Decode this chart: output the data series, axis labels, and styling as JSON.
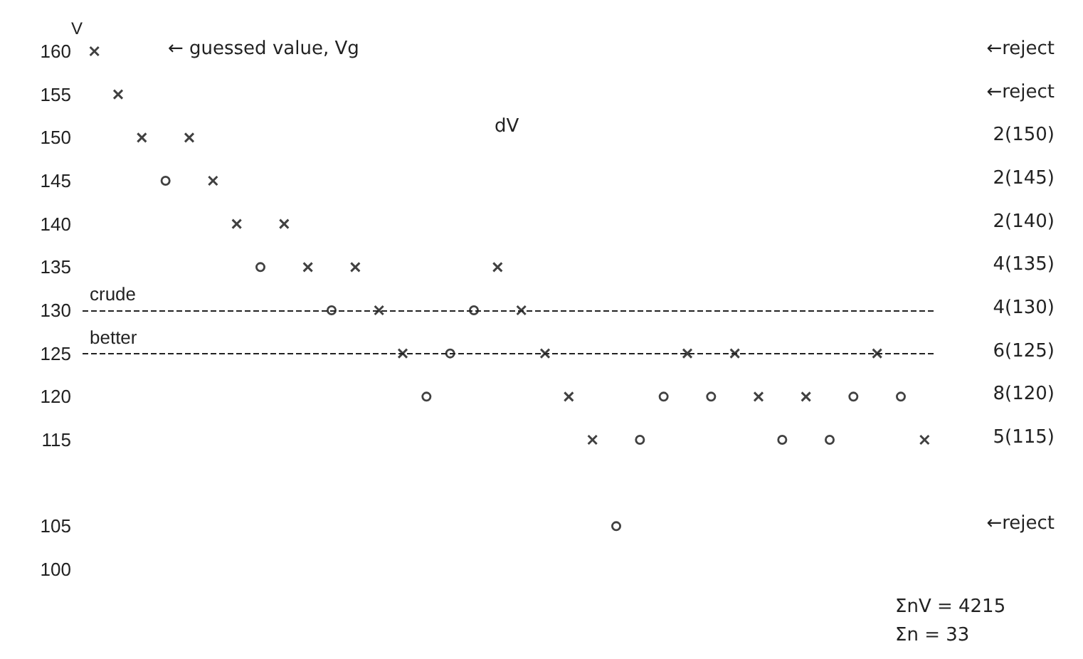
{
  "chart_data": {
    "type": "scatter",
    "ylabel": "V",
    "categories": [
      null,
      null,
      null,
      null,
      null,
      null,
      null,
      null,
      null,
      null,
      null,
      null,
      null,
      null,
      null,
      null,
      null,
      null,
      null,
      null,
      null,
      null,
      null,
      null,
      null,
      null,
      null,
      null,
      null,
      null,
      null,
      null,
      null,
      null,
      null,
      null
    ],
    "series": [
      {
        "color": "#111111",
        "marker": "cross",
        "values": [
          160,
          155,
          150,
          null,
          150,
          145,
          140,
          null,
          140,
          135,
          null,
          135,
          130,
          125,
          null,
          null,
          null,
          135,
          130,
          125,
          120,
          115,
          null,
          null,
          null,
          125,
          null,
          125,
          120,
          null,
          120,
          null,
          null,
          125,
          null,
          115
        ]
      },
      {
        "color": "#111111",
        "marker": "circle",
        "values": [
          null,
          null,
          null,
          145,
          null,
          null,
          null,
          135,
          null,
          null,
          130,
          null,
          null,
          null,
          120,
          125,
          130,
          null,
          null,
          null,
          null,
          null,
          105,
          115,
          120,
          null,
          120,
          null,
          null,
          115,
          null,
          115,
          120,
          null,
          120,
          null
        ]
      }
    ],
    "ylim": [
      100,
      160
    ],
    "yticks": [
      100,
      105,
      115,
      120,
      125,
      130,
      135,
      140,
      145,
      150,
      155,
      160
    ],
    "tick_labels": "y",
    "grid": false,
    "ref_lines": [
      {
        "axis": "y",
        "value": 130,
        "label": "crude",
        "line_style": "dashed",
        "color": "#222222"
      },
      {
        "axis": "y",
        "value": 125,
        "label": "better",
        "line_style": "dashed",
        "color": "#222222"
      }
    ],
    "annotations": [
      "← guessed value, Vg",
      "dV",
      "←reject",
      "←reject",
      "2(150)",
      "2(145)",
      "2(140)",
      "4(135)",
      "4(130)",
      "6(125)",
      "8(120)",
      "5(115)",
      "←reject",
      "ΣnV = 4215",
      "Σn = 33"
    ]
  }
}
